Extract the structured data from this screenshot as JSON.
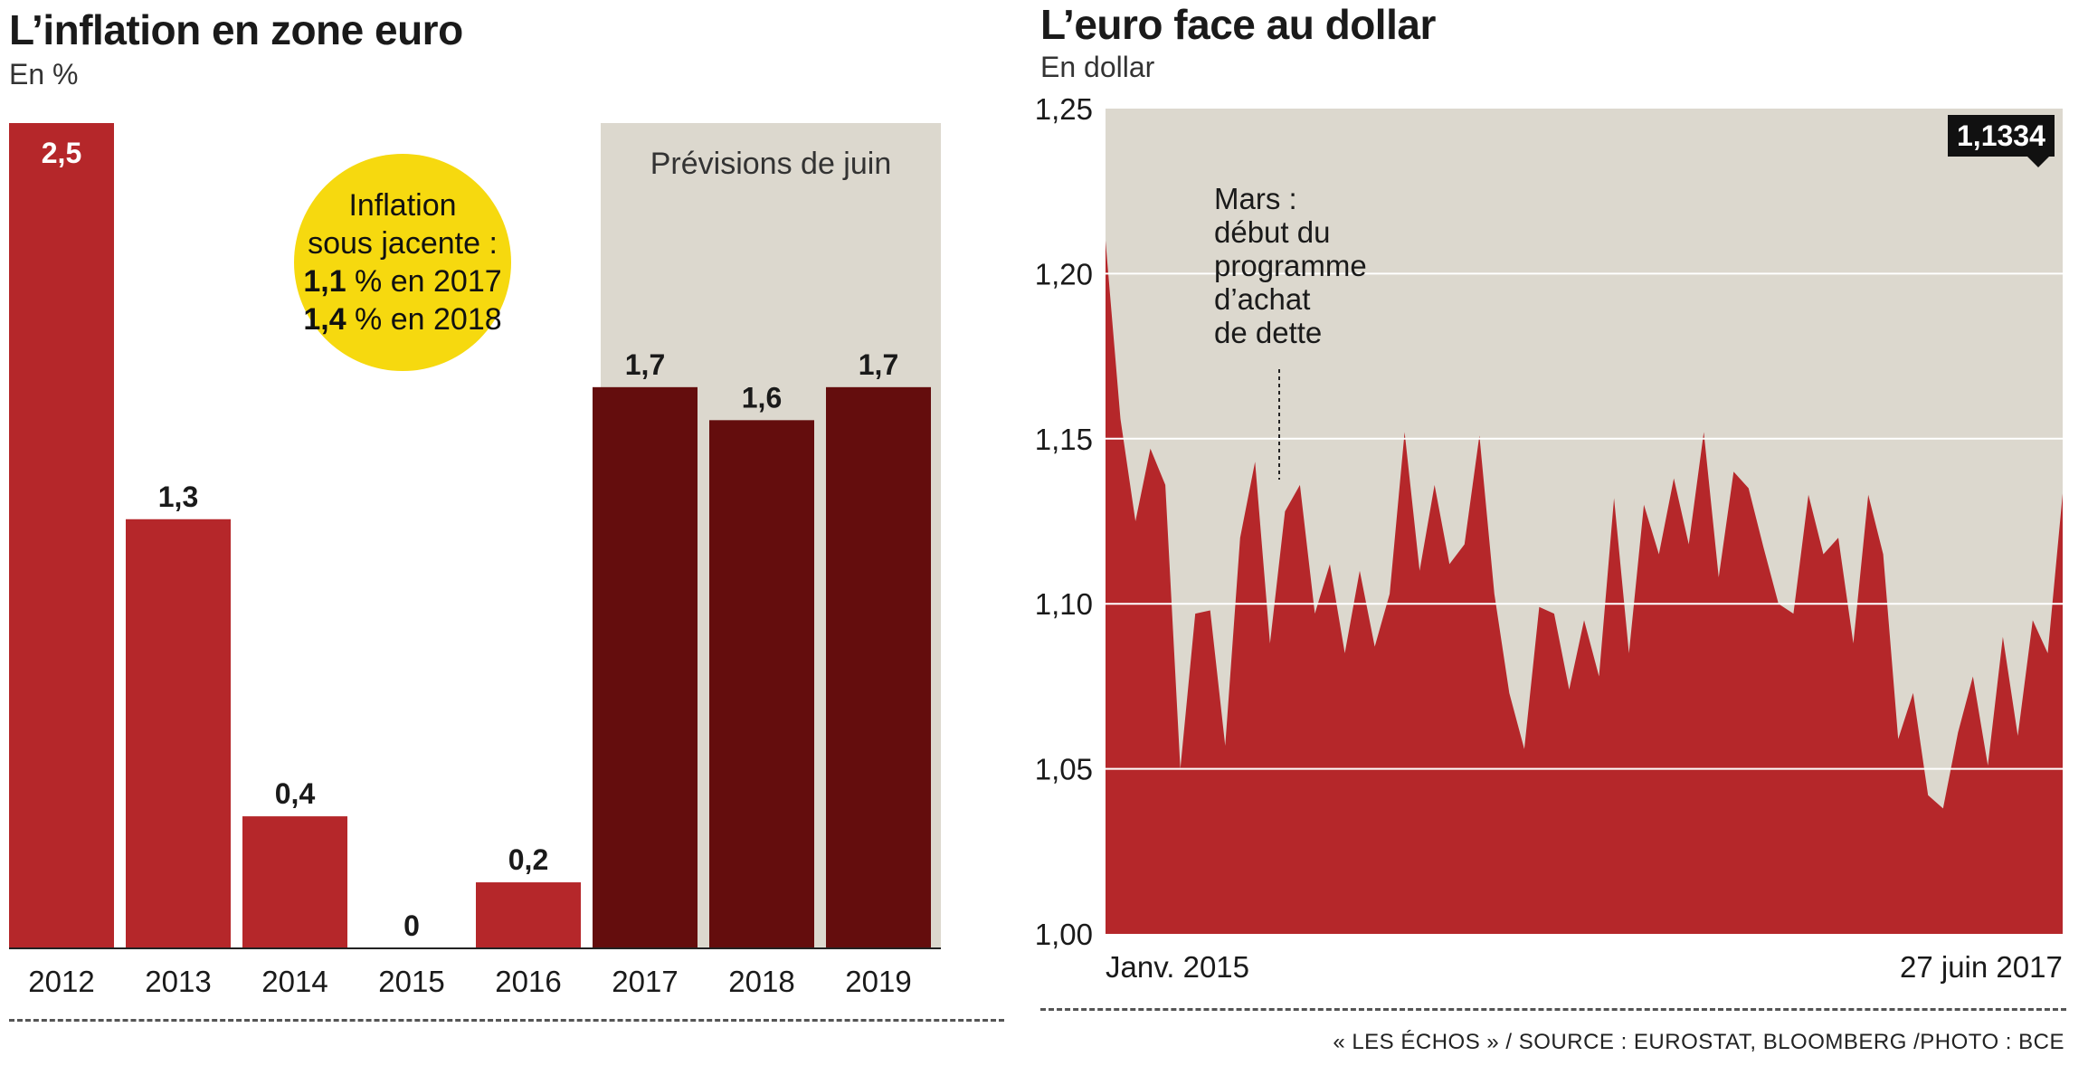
{
  "left": {
    "title": "L’inflation en zone euro",
    "subtitle": "En %",
    "forecast_label": "Prévisions de juin",
    "bubble": {
      "line1": "Inflation",
      "line2": "sous jacente :",
      "l3_value": "1,1",
      "l3_rest": " % en 2017",
      "l4_value": "1,4",
      "l4_rest": " % en 2018"
    }
  },
  "right": {
    "title": "L’euro face au dollar",
    "subtitle": "En dollar",
    "annotation": [
      "Mars :",
      "début du",
      "programme",
      "d’achat",
      "de dette"
    ],
    "callout": "1,1334",
    "x_start_label": "Janv. 2015",
    "x_end_label": "27 juin 2017"
  },
  "source": "« LES ÉCHOS » / SOURCE : EUROSTAT, BLOOMBERG /PHOTO : BCE",
  "colors": {
    "red": "#b5272a",
    "dark_red": "#640d0d",
    "forecast_bg": "#dcd8ce",
    "yellow": "#f6d90f",
    "area_bg": "#dcd8ce"
  },
  "chart_data": [
    {
      "type": "bar",
      "categories": [
        "2012",
        "2013",
        "2014",
        "2015",
        "2016",
        "2017",
        "2018",
        "2019"
      ],
      "values": [
        2.5,
        1.3,
        0.4,
        0,
        0.2,
        1.7,
        1.6,
        1.7
      ],
      "labels": [
        "2,5",
        "1,3",
        "0,4",
        "0",
        "0,2",
        "1,7",
        "1,6",
        "1,7"
      ],
      "forecast": [
        false,
        false,
        false,
        false,
        false,
        true,
        true,
        true
      ],
      "ylim": [
        0,
        2.5
      ]
    },
    {
      "type": "area",
      "ylim": [
        1.0,
        1.25
      ],
      "y_ticks": [
        1.0,
        1.05,
        1.1,
        1.15,
        1.2,
        1.25
      ],
      "y_tick_labels": [
        "1,00",
        "1,05",
        "1,10",
        "1,15",
        "1,20",
        "1,25"
      ],
      "x": [
        "2015-01",
        "2015-01",
        "2015-01",
        "2015-02",
        "2015-03",
        "2015-03",
        "2015-04",
        "2015-04",
        "2015-05",
        "2015-05",
        "2015-05",
        "2015-06",
        "2015-06",
        "2015-07",
        "2015-07",
        "2015-08",
        "2015-08",
        "2015-09",
        "2015-09",
        "2015-10",
        "2015-10",
        "2015-10",
        "2015-11",
        "2015-11",
        "2015-12",
        "2015-12",
        "2015-12",
        "2016-01",
        "2016-01",
        "2016-02",
        "2016-02",
        "2016-03",
        "2016-03",
        "2016-04",
        "2016-04",
        "2016-05",
        "2016-05",
        "2016-06",
        "2016-06",
        "2016-06",
        "2016-07",
        "2016-07",
        "2016-08",
        "2016-08",
        "2016-09",
        "2016-09",
        "2016-10",
        "2016-10",
        "2016-11",
        "2016-11",
        "2016-12",
        "2016-12",
        "2016-12",
        "2017-01",
        "2017-01",
        "2017-02",
        "2017-02",
        "2017-03",
        "2017-04",
        "2017-04",
        "2017-05",
        "2017-05",
        "2017-06",
        "2017-06",
        "2017-06"
      ],
      "values": [
        1.21,
        1.156,
        1.125,
        1.147,
        1.136,
        1.05,
        1.097,
        1.098,
        1.057,
        1.12,
        1.143,
        1.088,
        1.128,
        1.136,
        1.097,
        1.112,
        1.085,
        1.11,
        1.087,
        1.103,
        1.152,
        1.11,
        1.136,
        1.112,
        1.118,
        1.151,
        1.103,
        1.073,
        1.056,
        1.099,
        1.097,
        1.074,
        1.095,
        1.078,
        1.132,
        1.085,
        1.13,
        1.115,
        1.138,
        1.118,
        1.152,
        1.108,
        1.14,
        1.135,
        1.117,
        1.1,
        1.097,
        1.133,
        1.115,
        1.12,
        1.088,
        1.133,
        1.115,
        1.059,
        1.073,
        1.042,
        1.038,
        1.061,
        1.078,
        1.051,
        1.09,
        1.06,
        1.095,
        1.085,
        1.1334
      ],
      "annotation": {
        "x": "2015-03",
        "text": "Mars : début du programme d’achat de dette"
      },
      "last_value": 1.1334
    }
  ]
}
